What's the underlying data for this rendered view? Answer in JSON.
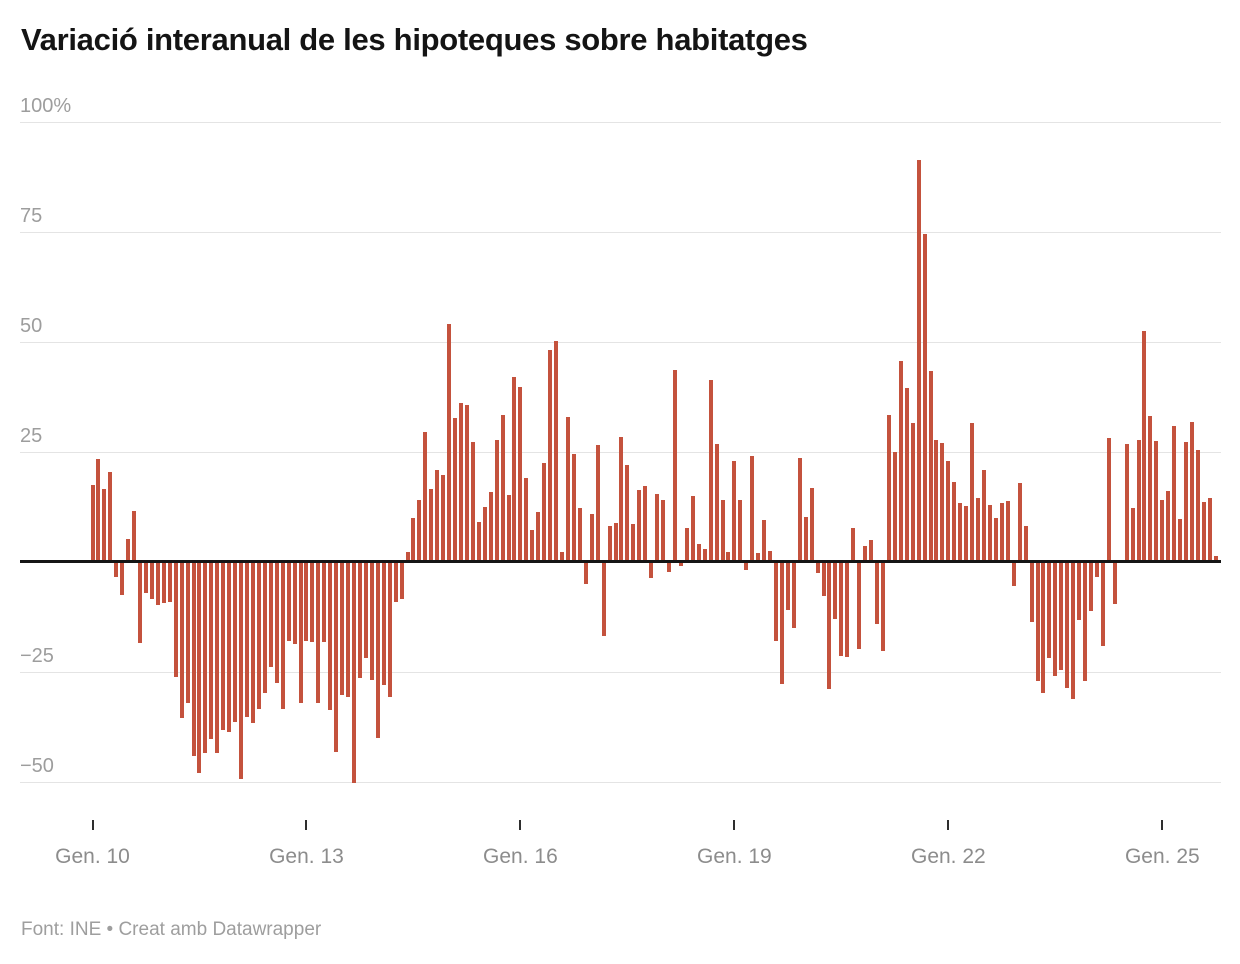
{
  "title": "Variació interanual de les hipoteques sobre habitatges",
  "footer": "Font: INE • Creat amb Datawrapper",
  "colors": {
    "bar": "#c4523d",
    "baseline": "#151515",
    "gridline": "#e4e4e4",
    "axis_text": "#9d9d9d",
    "title_text": "#141414"
  },
  "chart_data": {
    "type": "bar",
    "title": "Variació interanual de les hipoteques sobre habitatges",
    "unit": "%",
    "frequency": "monthly",
    "first_bar_label": "Gen. 10",
    "ylim": [
      -60,
      100
    ],
    "grid": "on",
    "y_ticks": [
      {
        "value": 100,
        "label": "100%"
      },
      {
        "value": 75,
        "label": "75"
      },
      {
        "value": 50,
        "label": "50"
      },
      {
        "value": 25,
        "label": "25"
      },
      {
        "value": -25,
        "label": "−25"
      },
      {
        "value": -50,
        "label": "−50"
      }
    ],
    "x_ticks": [
      {
        "label": "Gen. 10",
        "month_index": 0
      },
      {
        "label": "Gen. 13",
        "month_index": 36
      },
      {
        "label": "Gen. 16",
        "month_index": 72
      },
      {
        "label": "Gen. 19",
        "month_index": 108
      },
      {
        "label": "Gen. 22",
        "month_index": 144
      },
      {
        "label": "Gen. 25",
        "month_index": 180
      }
    ],
    "values": [
      17.5,
      23.5,
      16.5,
      20.5,
      -3.5,
      -7.5,
      5.3,
      11.5,
      -18.5,
      -7,
      -8.3,
      -9.8,
      -9.4,
      -9,
      -26.2,
      -35.4,
      -32.1,
      -44.1,
      -48,
      -43.5,
      -40.3,
      -43.5,
      -38.2,
      -38.6,
      -36.3,
      -49.4,
      -35.2,
      -36.7,
      -33.3,
      -29.7,
      -23.8,
      -27.6,
      -33.3,
      -18,
      -18.6,
      -32.1,
      -18,
      -18.1,
      -32.1,
      -18.1,
      -33.6,
      -43.1,
      -30.2,
      -30.6,
      -50.3,
      -26.4,
      -21.9,
      -26.8,
      -40.1,
      -28,
      -30.6,
      -9,
      -8.3,
      2.3,
      9.9,
      14.1,
      29.6,
      16.7,
      20.9,
      19.8,
      54,
      32.7,
      36.1,
      35.7,
      27.3,
      9.2,
      12.6,
      16,
      27.7,
      33.4,
      15.2,
      42.1,
      39.7,
      19,
      7.3,
      11.4,
      22.4,
      48.2,
      50.3,
      2.3,
      32.9,
      24.5,
      12.2,
      -5.1,
      10.8,
      26.7,
      -16.8,
      8.2,
      8.9,
      28.3,
      22,
      8.6,
      16.3,
      17.3,
      -3.7,
      15.4,
      14,
      -2.3,
      43.6,
      -0.9,
      7.8,
      15,
      4.2,
      2.9,
      41.3,
      26.9,
      14,
      2.3,
      23,
      14,
      -1.9,
      24.1,
      2.1,
      9.5,
      2.4,
      -17.9,
      -27.7,
      -10.8,
      -14.9,
      23.7,
      10.2,
      16.9,
      -2.5,
      -7.7,
      -28.8,
      -13,
      -21.3,
      -21.7,
      7.7,
      -19.8,
      3.7,
      4.9,
      -14.2,
      -20.2,
      33.5,
      25,
      45.6,
      39.5,
      31.6,
      91.3,
      74.6,
      43.3,
      27.8,
      27,
      22.9,
      18.2,
      13.4,
      12.8,
      31.7,
      14.5,
      21,
      13,
      10,
      13.4,
      13.9,
      -5.4,
      18,
      8.2,
      -13.7,
      -27.1,
      -29.7,
      -21.8,
      -26,
      -24.6,
      -28.6,
      -31.1,
      -13.1,
      -27.1,
      -11.2,
      -3.3,
      -19.2,
      28.2,
      -9.5,
      0.5,
      26.8,
      12.3,
      27.8,
      52.5,
      33.1,
      27.5,
      14.2,
      16.2,
      30.9,
      9.7,
      27.2,
      31.8,
      25.5,
      13.7,
      14.6,
      1.4
    ]
  }
}
